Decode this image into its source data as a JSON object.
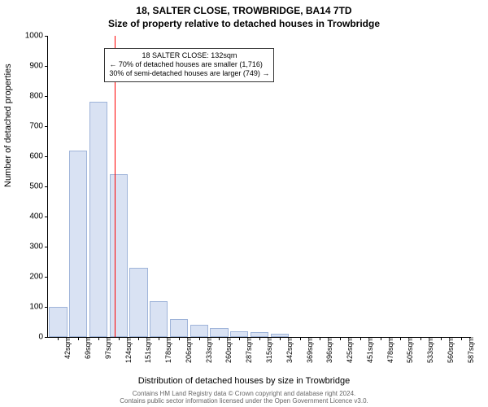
{
  "title_line1": "18, SALTER CLOSE, TROWBRIDGE, BA14 7TD",
  "title_line2": "Size of property relative to detached houses in Trowbridge",
  "ylabel": "Number of detached properties",
  "xlabel": "Distribution of detached houses by size in Trowbridge",
  "chart": {
    "type": "histogram",
    "ylim": [
      0,
      1000
    ],
    "ytick_step": 100,
    "xtick_labels": [
      "42sqm",
      "69sqm",
      "97sqm",
      "124sqm",
      "151sqm",
      "178sqm",
      "206sqm",
      "233sqm",
      "260sqm",
      "287sqm",
      "315sqm",
      "342sqm",
      "369sqm",
      "396sqm",
      "425sqm",
      "451sqm",
      "478sqm",
      "505sqm",
      "533sqm",
      "560sqm",
      "587sqm"
    ],
    "bars": [
      100,
      620,
      780,
      540,
      230,
      120,
      60,
      40,
      30,
      20,
      15,
      10,
      0,
      0,
      0,
      0,
      0,
      0,
      0,
      0,
      0
    ],
    "bar_fill": "#d9e2f3",
    "bar_stroke": "#9fb4d9",
    "refline_x_index": 3.3,
    "refline_color": "#ff0000",
    "background_color": "#ffffff",
    "annot": {
      "lines": [
        "18 SALTER CLOSE: 132sqm",
        "← 70% of detached houses are smaller (1,716)",
        "30% of semi-detached houses are larger (749) →"
      ],
      "x_index": 2.8,
      "y_value": 960
    }
  },
  "credits_line1": "Contains HM Land Registry data © Crown copyright and database right 2024.",
  "credits_line2": "Contains public sector information licensed under the Open Government Licence v3.0."
}
